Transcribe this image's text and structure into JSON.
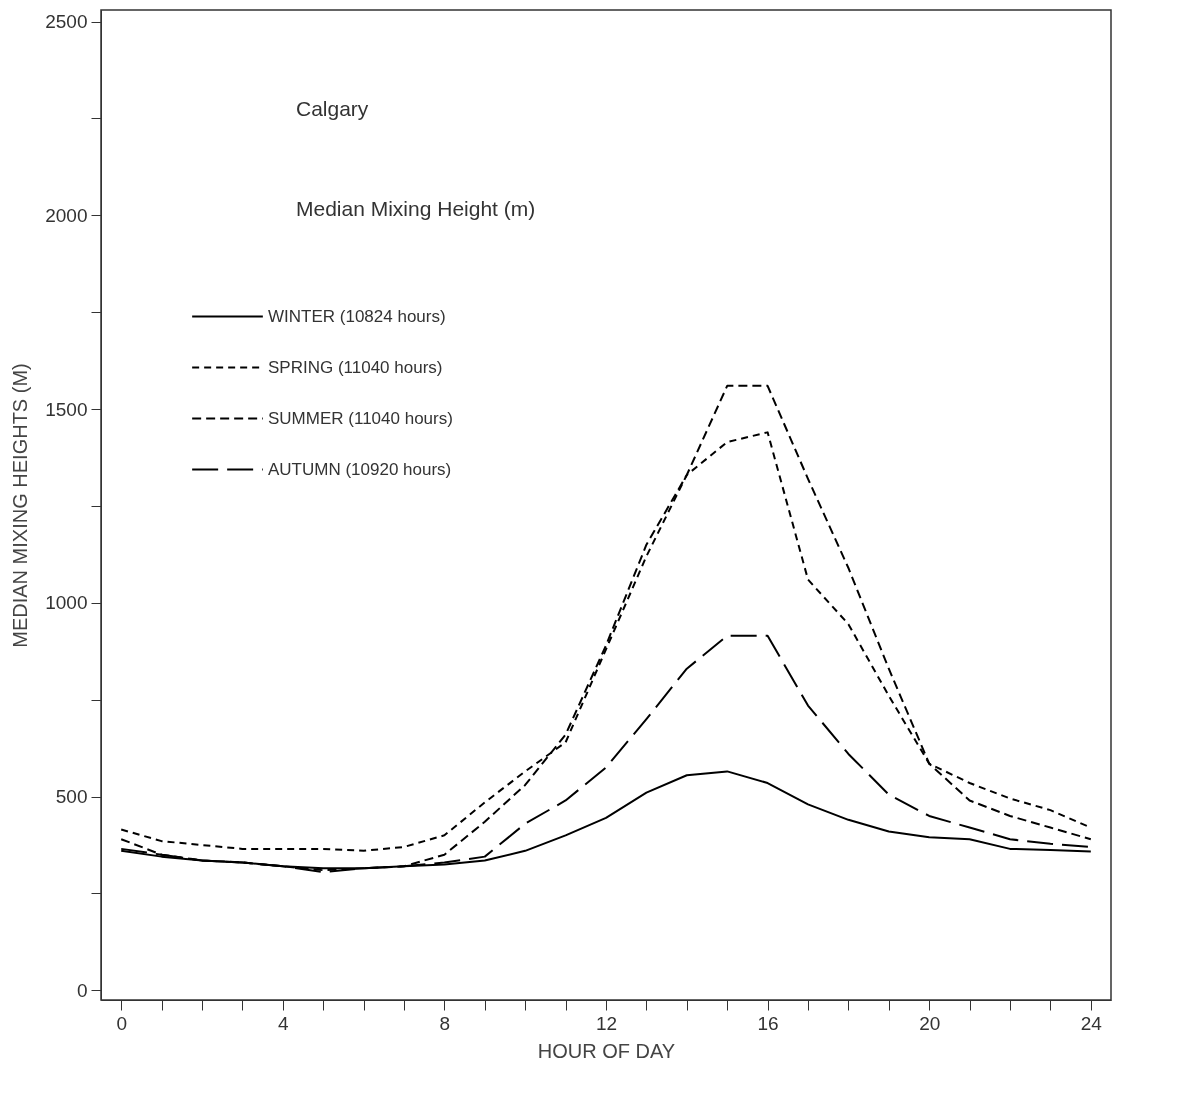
{
  "chart_data": {
    "type": "line",
    "xlabel": "HOUR OF DAY",
    "ylabel": "MEDIAN MIXING HEIGHTS (M)",
    "annotations": [
      "Calgary",
      "Median Mixing Height (m)"
    ],
    "x": [
      0,
      1,
      2,
      3,
      4,
      5,
      6,
      7,
      8,
      9,
      10,
      11,
      12,
      13,
      14,
      15,
      16,
      17,
      18,
      19,
      20,
      21,
      22,
      23,
      24
    ],
    "series": [
      {
        "name": "WINTER (10824 hours)",
        "color": "#000000",
        "line_style": "solid",
        "values": [
          360,
          345,
          335,
          330,
          320,
          315,
          315,
          320,
          325,
          335,
          360,
          400,
          445,
          510,
          555,
          565,
          535,
          480,
          440,
          410,
          395,
          390,
          365,
          362,
          358
        ]
      },
      {
        "name": "SPRING (11040 hours)",
        "color": "#000000",
        "line_style": "dotted",
        "values": [
          415,
          385,
          375,
          365,
          365,
          365,
          360,
          370,
          400,
          485,
          565,
          640,
          880,
          1120,
          1330,
          1415,
          1440,
          1060,
          945,
          760,
          585,
          535,
          495,
          465,
          420
        ]
      },
      {
        "name": "SUMMER (11040 hours)",
        "color": "#000000",
        "line_style": "dashed",
        "values": [
          390,
          350,
          335,
          330,
          320,
          310,
          315,
          320,
          350,
          435,
          530,
          660,
          890,
          1150,
          1330,
          1560,
          1560,
          1320,
          1090,
          830,
          585,
          490,
          450,
          420,
          390
        ]
      },
      {
        "name": "AUTUMN (10920 hours)",
        "color": "#000000",
        "line_style": "longdashed",
        "values": [
          365,
          350,
          335,
          330,
          320,
          305,
          315,
          320,
          330,
          345,
          430,
          490,
          575,
          700,
          830,
          915,
          915,
          735,
          610,
          505,
          450,
          420,
          390,
          378,
          370
        ]
      }
    ],
    "xlim": [
      -0.5,
      24.5
    ],
    "xticks": [
      0,
      {
        "value": 1,
        "label": null
      },
      {
        "value": 2,
        "label": null
      },
      {
        "value": 3,
        "label": null
      },
      4,
      {
        "value": 5,
        "label": null
      },
      {
        "value": 6,
        "label": null
      },
      {
        "value": 7,
        "label": null
      },
      8,
      {
        "value": 9,
        "label": null
      },
      {
        "value": 10,
        "label": null
      },
      {
        "value": 11,
        "label": null
      },
      12,
      {
        "value": 13,
        "label": null
      },
      {
        "value": 14,
        "label": null
      },
      {
        "value": 15,
        "label": null
      },
      16,
      {
        "value": 17,
        "label": null
      },
      {
        "value": 18,
        "label": null
      },
      {
        "value": 19,
        "label": null
      },
      20,
      {
        "value": 21,
        "label": null
      },
      {
        "value": 22,
        "label": null
      },
      {
        "value": 23,
        "label": null
      },
      24
    ],
    "ylim": [
      -25,
      2530
    ],
    "yticks": [
      0,
      {
        "value": 250,
        "label": null
      },
      500,
      {
        "value": 750,
        "label": null
      },
      1000,
      {
        "value": 1250,
        "label": null
      },
      1500,
      {
        "value": 1750,
        "label": null
      },
      2000,
      {
        "value": 2250,
        "label": null
      },
      2500
    ],
    "grid": false,
    "legend": "top left"
  }
}
